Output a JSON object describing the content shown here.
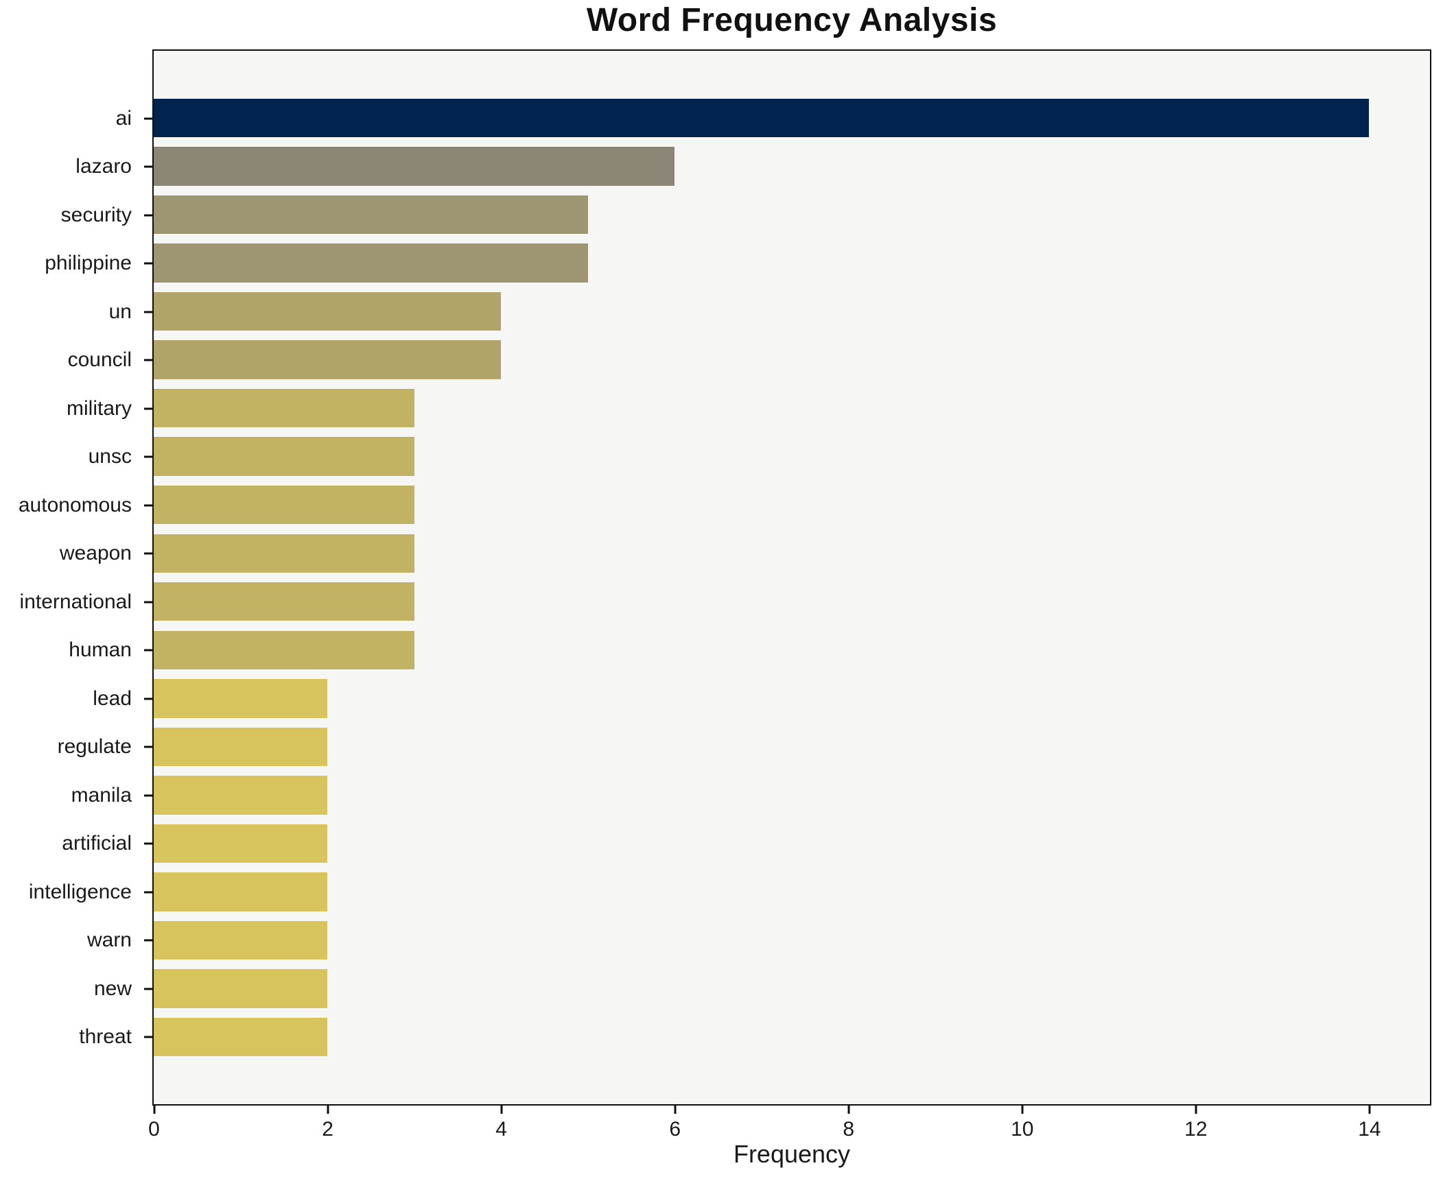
{
  "chart_data": {
    "type": "bar",
    "orientation": "horizontal",
    "title": "Word Frequency Analysis",
    "xlabel": "Frequency",
    "ylabel": "",
    "categories": [
      "ai",
      "lazaro",
      "security",
      "philippine",
      "un",
      "council",
      "military",
      "unsc",
      "autonomous",
      "weapon",
      "international",
      "human",
      "lead",
      "regulate",
      "manila",
      "artificial",
      "intelligence",
      "warn",
      "new",
      "threat"
    ],
    "values": [
      14,
      6,
      5,
      5,
      4,
      4,
      3,
      3,
      3,
      3,
      3,
      3,
      2,
      2,
      2,
      2,
      2,
      2,
      2,
      2
    ],
    "bar_colors": [
      "#02234e",
      "#8c8677",
      "#9e9572",
      "#9e9572",
      "#b1a46a",
      "#b1a46a",
      "#c2b263",
      "#c2b263",
      "#c2b263",
      "#c2b263",
      "#c2b263",
      "#c2b263",
      "#d8c45c",
      "#d8c45c",
      "#d8c45c",
      "#d8c45c",
      "#d8c45c",
      "#d8c45c",
      "#d8c45c",
      "#d8c45c"
    ],
    "xlim": [
      0,
      14.7
    ],
    "xticks": [
      0,
      2,
      4,
      6,
      8,
      10,
      12,
      14
    ],
    "grid": false,
    "legend": false,
    "colors": {
      "figure_bg": "#ffffff",
      "plot_bg": "#f6f6f4",
      "spine": "#0f0f0f",
      "text": "#1a1a1a"
    }
  }
}
